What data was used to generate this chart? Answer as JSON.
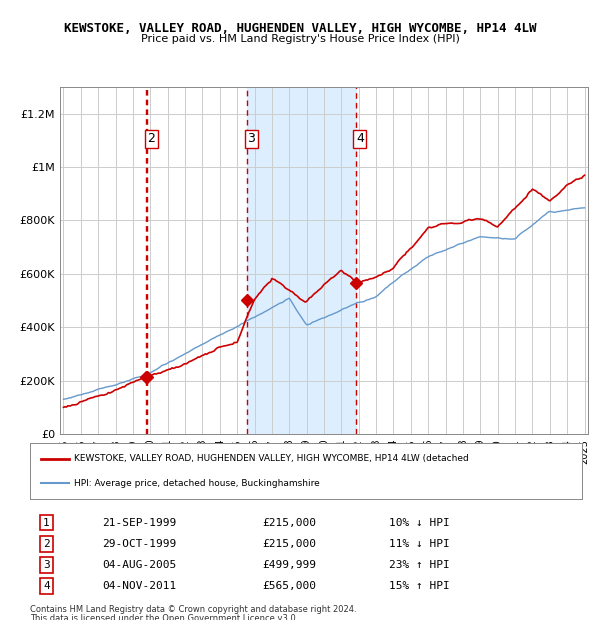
{
  "title_line1": "KEWSTOKE, VALLEY ROAD, HUGHENDEN VALLEY, HIGH WYCOMBE, HP14 4LW",
  "title_line2": "Price paid vs. HM Land Registry's House Price Index (HPI)",
  "red_label": "KEWSTOKE, VALLEY ROAD, HUGHENDEN VALLEY, HIGH WYCOMBE, HP14 4LW (detached",
  "blue_label": "HPI: Average price, detached house, Buckinghamshire",
  "footer_line1": "Contains HM Land Registry data © Crown copyright and database right 2024.",
  "footer_line2": "This data is licensed under the Open Government Licence v3.0.",
  "transactions": [
    {
      "num": 1,
      "date": "21-SEP-1999",
      "price": "£215,000",
      "pct": "10% ↓ HPI",
      "x_year": 1999.73
    },
    {
      "num": 2,
      "date": "29-OCT-1999",
      "price": "£215,000",
      "pct": "11% ↓ HPI",
      "x_year": 1999.83
    },
    {
      "num": 3,
      "date": "04-AUG-2005",
      "price": "£499,999",
      "pct": "23% ↑ HPI",
      "x_year": 2005.59
    },
    {
      "num": 4,
      "date": "04-NOV-2011",
      "price": "£565,000",
      "pct": "15% ↑ HPI",
      "x_year": 2011.84
    }
  ],
  "shade_start": 2005.59,
  "shade_end": 2011.84,
  "hatch_start": 2024.5,
  "hatch_end": 2025.2,
  "ylim": [
    0,
    1300000
  ],
  "xlim_start": 1994.8,
  "xlim_end": 2025.2,
  "red_color": "#cc0000",
  "blue_color": "#6699cc",
  "dashed_color": "#cc0000",
  "shade_color": "#ddeeff",
  "grid_color": "#cccccc",
  "bg_color": "#ffffff",
  "marker_color": "#cc0000"
}
